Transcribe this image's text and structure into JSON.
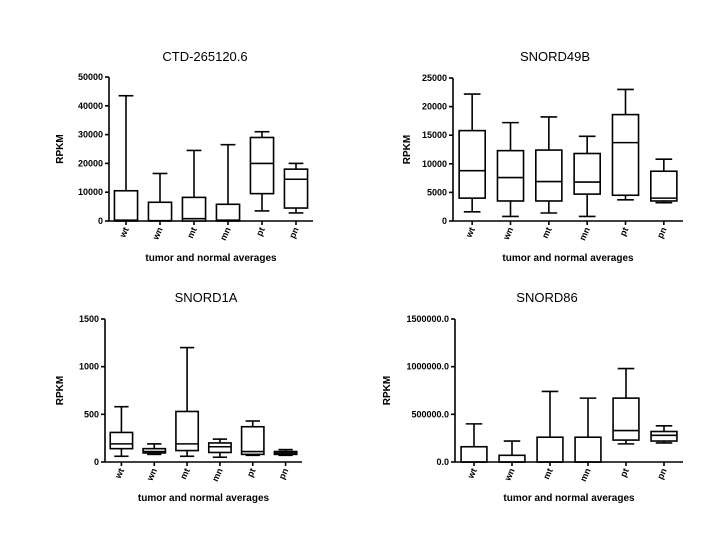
{
  "chart_data": [
    {
      "type": "boxplot",
      "title": "CTD-265120.6",
      "ylabel": "RPKM",
      "xlabel": "tumor and normal averages",
      "ylim": [
        0,
        50000
      ],
      "yticks": [
        0,
        10000,
        20000,
        30000,
        40000,
        50000
      ],
      "ytick_labels": [
        "0",
        "10000",
        "20000",
        "30000",
        "40000",
        "50000"
      ],
      "categories": [
        "wt",
        "wn",
        "mt",
        "mn",
        "pt",
        "pn"
      ],
      "boxes": [
        {
          "min": 0,
          "q1": 0,
          "median": 300,
          "q3": 10500,
          "max": 43500
        },
        {
          "min": 0,
          "q1": 0,
          "median": 100,
          "q3": 6500,
          "max": 16500
        },
        {
          "min": 0,
          "q1": 0,
          "median": 800,
          "q3": 8200,
          "max": 24500
        },
        {
          "min": 0,
          "q1": 0,
          "median": 300,
          "q3": 5800,
          "max": 26500
        },
        {
          "min": 3500,
          "q1": 9500,
          "median": 20000,
          "q3": 29000,
          "max": 31000
        },
        {
          "min": 2800,
          "q1": 4500,
          "median": 14500,
          "q3": 18000,
          "max": 20000
        }
      ]
    },
    {
      "type": "boxplot",
      "title": "SNORD49B",
      "ylabel": "RPKM",
      "xlabel": "tumor and normal averages",
      "ylim": [
        0,
        25000
      ],
      "yticks": [
        0,
        5000,
        10000,
        15000,
        20000,
        25000
      ],
      "ytick_labels": [
        "0",
        "5000",
        "10000",
        "15000",
        "20000",
        "25000"
      ],
      "categories": [
        "wt",
        "wn",
        "mt",
        "mn",
        "pt",
        "pn"
      ],
      "boxes": [
        {
          "min": 1600,
          "q1": 4000,
          "median": 8800,
          "q3": 15800,
          "max": 22200
        },
        {
          "min": 800,
          "q1": 3500,
          "median": 7600,
          "q3": 12300,
          "max": 17200
        },
        {
          "min": 1400,
          "q1": 3500,
          "median": 6900,
          "q3": 12400,
          "max": 18200
        },
        {
          "min": 800,
          "q1": 4700,
          "median": 6800,
          "q3": 11800,
          "max": 14800
        },
        {
          "min": 3700,
          "q1": 4500,
          "median": 13700,
          "q3": 18600,
          "max": 23000
        },
        {
          "min": 3200,
          "q1": 3500,
          "median": 4000,
          "q3": 8700,
          "max": 10800
        }
      ]
    },
    {
      "type": "boxplot",
      "title": "SNORD1A",
      "ylabel": "RPKM",
      "xlabel": "tumor and normal averages",
      "ylim": [
        0,
        1500
      ],
      "yticks": [
        0,
        500,
        1000,
        1500
      ],
      "ytick_labels": [
        "0",
        "500",
        "1000",
        "1500"
      ],
      "categories": [
        "wt",
        "wn",
        "mt",
        "mn",
        "pt",
        "pn"
      ],
      "boxes": [
        {
          "min": 60,
          "q1": 140,
          "median": 190,
          "q3": 310,
          "max": 580
        },
        {
          "min": 80,
          "q1": 95,
          "median": 110,
          "q3": 140,
          "max": 190
        },
        {
          "min": 60,
          "q1": 120,
          "median": 190,
          "q3": 530,
          "max": 1200
        },
        {
          "min": 50,
          "q1": 100,
          "median": 160,
          "q3": 200,
          "max": 240
        },
        {
          "min": 70,
          "q1": 80,
          "median": 110,
          "q3": 370,
          "max": 430
        },
        {
          "min": 70,
          "q1": 80,
          "median": 95,
          "q3": 110,
          "max": 130
        }
      ]
    },
    {
      "type": "boxplot",
      "title": "SNORD86",
      "ylabel": "RPKM",
      "xlabel": "tumor and normal averages",
      "ylim": [
        0,
        1500000
      ],
      "yticks": [
        0,
        500000,
        1000000,
        1500000
      ],
      "ytick_labels": [
        "0.0",
        "500000.0",
        "1000000.0",
        "1500000.0"
      ],
      "categories": [
        "wt",
        "wn",
        "mt",
        "mn",
        "pt",
        "pn"
      ],
      "boxes": [
        {
          "min": 0,
          "q1": 0,
          "median": 0,
          "q3": 160000,
          "max": 400000
        },
        {
          "min": 0,
          "q1": 0,
          "median": 0,
          "q3": 70000,
          "max": 220000
        },
        {
          "min": 0,
          "q1": 0,
          "median": 0,
          "q3": 260000,
          "max": 740000
        },
        {
          "min": 0,
          "q1": 0,
          "median": 0,
          "q3": 260000,
          "max": 670000
        },
        {
          "min": 190000,
          "q1": 230000,
          "median": 330000,
          "q3": 670000,
          "max": 980000
        },
        {
          "min": 200000,
          "q1": 220000,
          "median": 280000,
          "q3": 320000,
          "max": 380000
        }
      ]
    }
  ]
}
